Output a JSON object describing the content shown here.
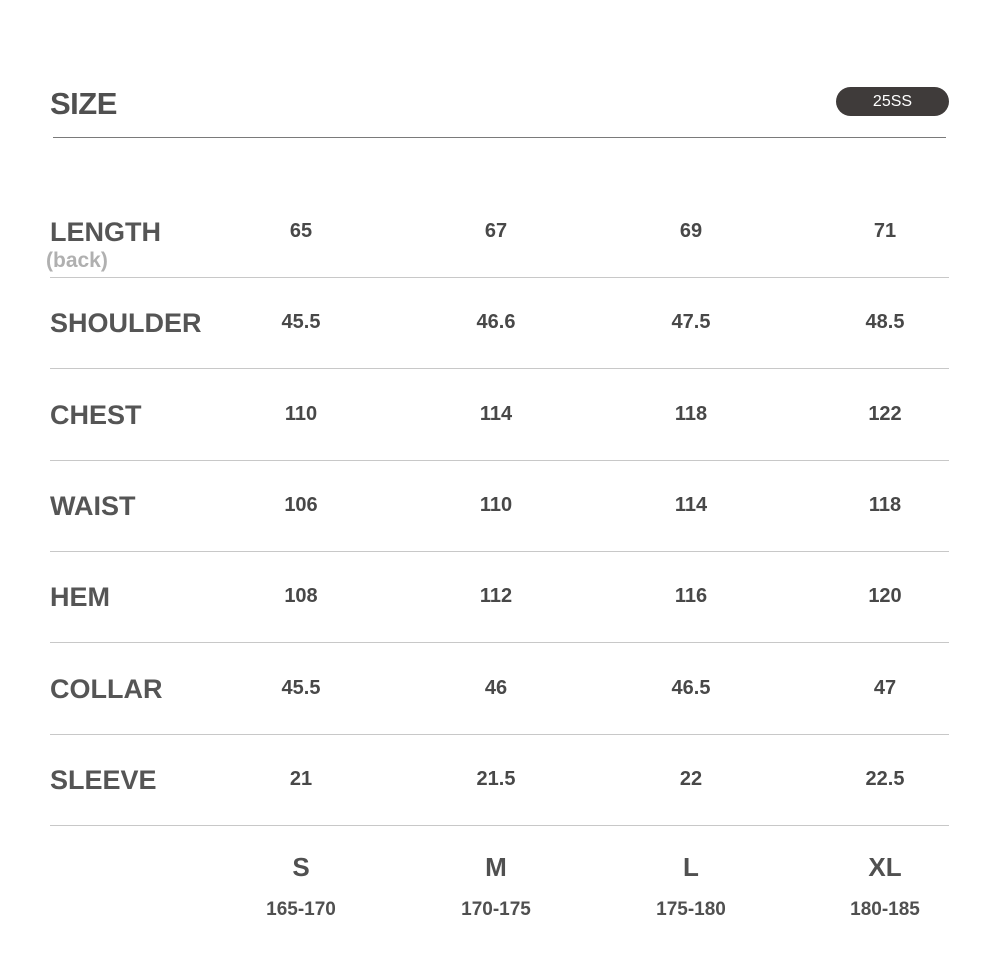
{
  "header": {
    "title": "SIZE",
    "season_badge": "25SS"
  },
  "rows": [
    {
      "label": "LENGTH",
      "sublabel": "(back)",
      "values": [
        "65",
        "67",
        "69",
        "71"
      ]
    },
    {
      "label": "SHOULDER",
      "values": [
        "45.5",
        "46.6",
        "47.5",
        "48.5"
      ]
    },
    {
      "label": "CHEST",
      "values": [
        "110",
        "114",
        "118",
        "122"
      ]
    },
    {
      "label": "WAIST",
      "values": [
        "106",
        "110",
        "114",
        "118"
      ]
    },
    {
      "label": "HEM",
      "values": [
        "108",
        "112",
        "116",
        "120"
      ]
    },
    {
      "label": "COLLAR",
      "values": [
        "45.5",
        "46",
        "46.5",
        "47"
      ]
    },
    {
      "label": "SLEEVE",
      "values": [
        "21",
        "21.5",
        "22",
        "22.5"
      ]
    }
  ],
  "sizes": [
    {
      "name": "S",
      "height": "165-170"
    },
    {
      "name": "M",
      "height": "170-175"
    },
    {
      "name": "L",
      "height": "175-180"
    },
    {
      "name": "XL",
      "height": "180-185"
    }
  ]
}
